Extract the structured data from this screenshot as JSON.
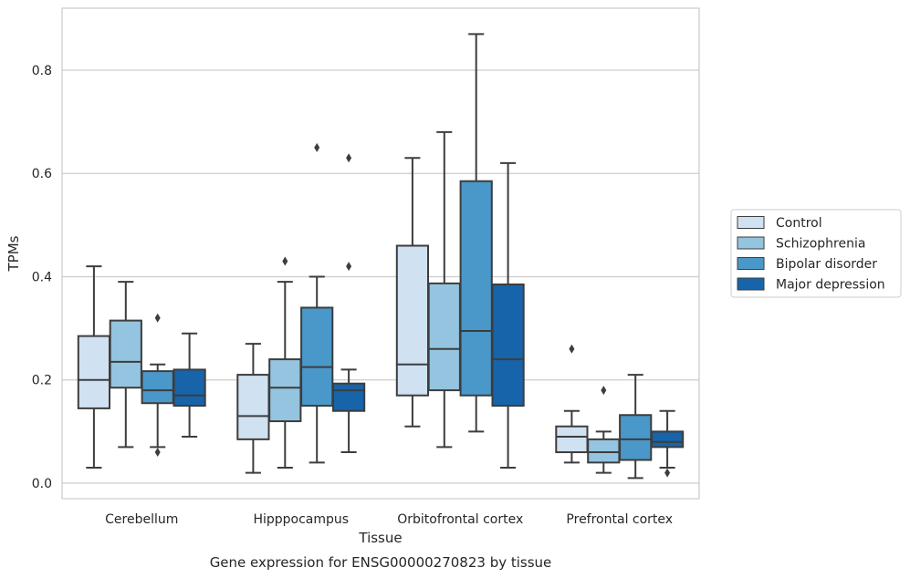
{
  "caption": "Gene expression for ENSG00000270823 by tissue",
  "chart_data": {
    "type": "box",
    "title": "",
    "xlabel": "Tissue",
    "ylabel": "TPMs",
    "ylim": [
      -0.03,
      0.92
    ],
    "yticks": [
      0.0,
      0.2,
      0.4,
      0.6,
      0.8
    ],
    "ytick_labels": [
      "0.0",
      "0.2",
      "0.4",
      "0.6",
      "0.8"
    ],
    "grid": "horizontal",
    "legend_position": "right",
    "categories": [
      "Cerebellum",
      "Hipppocampus",
      "Orbitofrontal cortex",
      "Prefrontal cortex"
    ],
    "series": [
      {
        "name": "Control",
        "color": "#d0e1f2",
        "boxes": [
          {
            "whislo": 0.03,
            "q1": 0.145,
            "med": 0.2,
            "q3": 0.285,
            "whishi": 0.42,
            "fliers": []
          },
          {
            "whislo": 0.02,
            "q1": 0.085,
            "med": 0.13,
            "q3": 0.21,
            "whishi": 0.27,
            "fliers": []
          },
          {
            "whislo": 0.11,
            "q1": 0.17,
            "med": 0.23,
            "q3": 0.46,
            "whishi": 0.63,
            "fliers": []
          },
          {
            "whislo": 0.04,
            "q1": 0.06,
            "med": 0.09,
            "q3": 0.11,
            "whishi": 0.14,
            "fliers": [
              0.26
            ]
          }
        ]
      },
      {
        "name": "Schizophrenia",
        "color": "#94c4df",
        "boxes": [
          {
            "whislo": 0.07,
            "q1": 0.185,
            "med": 0.235,
            "q3": 0.315,
            "whishi": 0.39,
            "fliers": []
          },
          {
            "whislo": 0.03,
            "q1": 0.12,
            "med": 0.185,
            "q3": 0.24,
            "whishi": 0.39,
            "fliers": [
              0.43
            ]
          },
          {
            "whislo": 0.07,
            "q1": 0.18,
            "med": 0.26,
            "q3": 0.387,
            "whishi": 0.68,
            "fliers": []
          },
          {
            "whislo": 0.02,
            "q1": 0.04,
            "med": 0.06,
            "q3": 0.085,
            "whishi": 0.1,
            "fliers": [
              0.18
            ]
          }
        ]
      },
      {
        "name": "Bipolar disorder",
        "color": "#4a98c9",
        "boxes": [
          {
            "whislo": 0.07,
            "q1": 0.155,
            "med": 0.18,
            "q3": 0.217,
            "whishi": 0.23,
            "fliers": [
              0.32,
              0.06
            ]
          },
          {
            "whislo": 0.04,
            "q1": 0.15,
            "med": 0.225,
            "q3": 0.34,
            "whishi": 0.4,
            "fliers": [
              0.65
            ]
          },
          {
            "whislo": 0.1,
            "q1": 0.17,
            "med": 0.295,
            "q3": 0.585,
            "whishi": 0.87,
            "fliers": []
          },
          {
            "whislo": 0.01,
            "q1": 0.045,
            "med": 0.085,
            "q3": 0.132,
            "whishi": 0.21,
            "fliers": []
          }
        ]
      },
      {
        "name": "Major depression",
        "color": "#1764ab",
        "boxes": [
          {
            "whislo": 0.09,
            "q1": 0.15,
            "med": 0.17,
            "q3": 0.22,
            "whishi": 0.29,
            "fliers": []
          },
          {
            "whislo": 0.06,
            "q1": 0.14,
            "med": 0.18,
            "q3": 0.193,
            "whishi": 0.22,
            "fliers": [
              0.63,
              0.42
            ]
          },
          {
            "whislo": 0.03,
            "q1": 0.15,
            "med": 0.24,
            "q3": 0.385,
            "whishi": 0.62,
            "fliers": []
          },
          {
            "whislo": 0.03,
            "q1": 0.07,
            "med": 0.08,
            "q3": 0.1,
            "whishi": 0.14,
            "fliers": [
              0.02
            ]
          }
        ]
      }
    ]
  }
}
